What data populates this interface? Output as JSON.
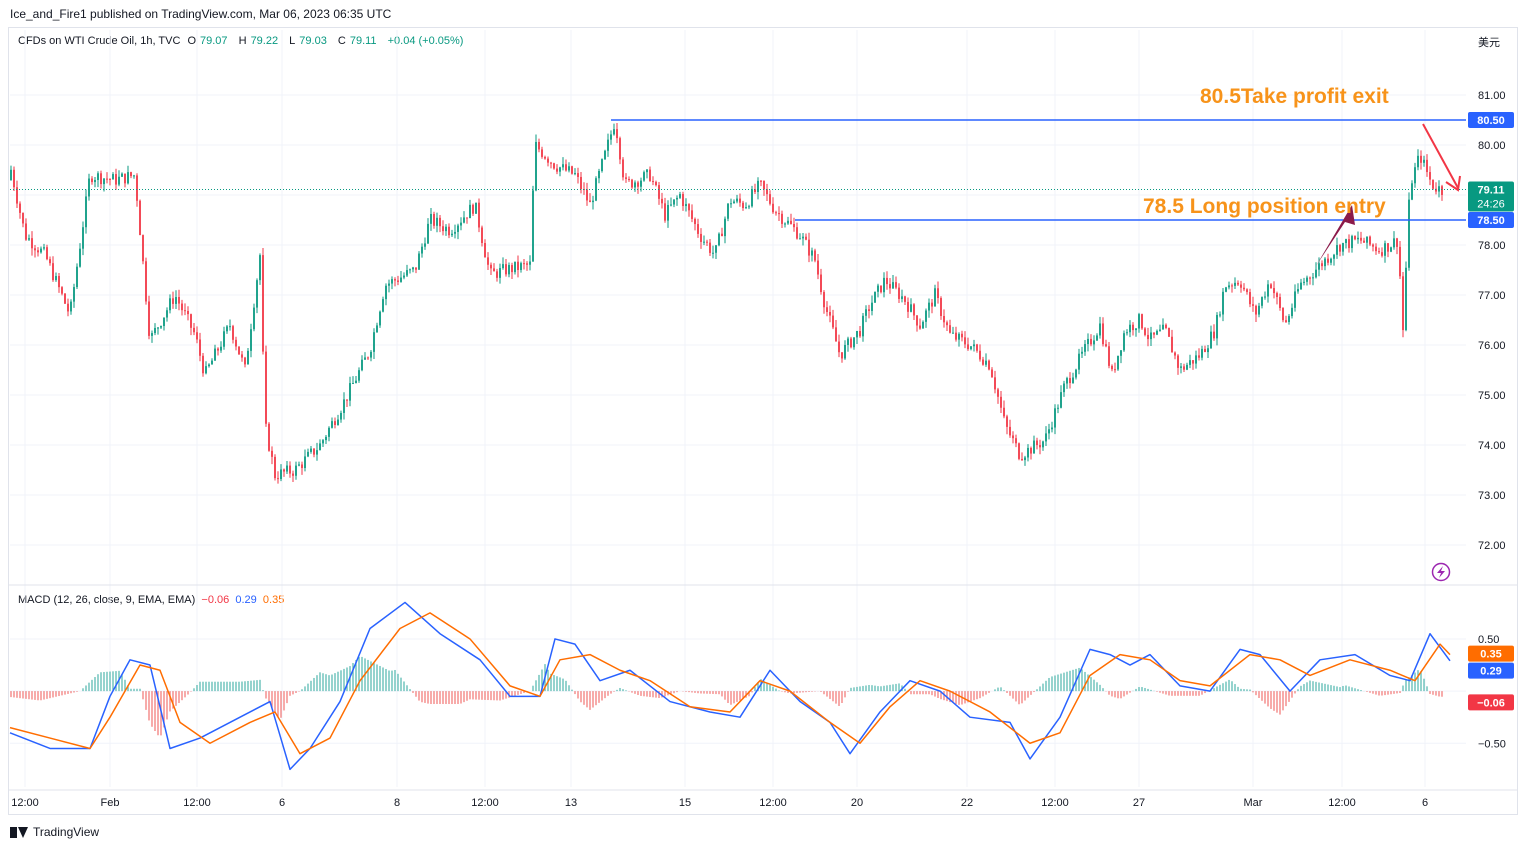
{
  "header": {
    "publisher_line": "Ice_and_Fire1 published on TradingView.com, Mar 06, 2023 06:35 UTC"
  },
  "legend": {
    "symbol": "CFDs on WTI Crude Oil, 1h, TVC",
    "open_label": "O",
    "open": "79.07",
    "high_label": "H",
    "high": "79.22",
    "low_label": "L",
    "low": "79.03",
    "close_label": "C",
    "close": "79.11",
    "change": "+0.04 (+0.05%)"
  },
  "macd_legend": {
    "label": "MACD (12, 26, close, 9, EMA, EMA)",
    "hist": "−0.06",
    "macd": "0.29",
    "signal": "0.35"
  },
  "currency": "美元",
  "footer": {
    "brand": "TradingView"
  },
  "chart_data": [
    {
      "type": "candlestick",
      "title": "CFDs on WTI Crude Oil, 1h, TVC",
      "x_tick_labels": [
        "12:00",
        "Feb",
        "12:00",
        "6",
        "8",
        "12:00",
        "13",
        "15",
        "12:00",
        "20",
        "22",
        "12:00",
        "27",
        "Mar",
        "12:00",
        "6"
      ],
      "y_tick_labels": [
        "81.00",
        "80.00",
        "79.00",
        "78.00",
        "77.00",
        "76.00",
        "75.00",
        "74.00",
        "73.00",
        "72.00"
      ],
      "ylim": [
        71.4,
        81.9
      ],
      "price_path": [
        [
          0,
          79.3
        ],
        [
          10,
          79.6
        ],
        [
          25,
          78.2
        ],
        [
          45,
          77.8
        ],
        [
          70,
          76.6
        ],
        [
          90,
          79.4
        ],
        [
          115,
          79.3
        ],
        [
          135,
          79.4
        ],
        [
          150,
          76.1
        ],
        [
          175,
          77.0
        ],
        [
          195,
          76.2
        ],
        [
          205,
          75.4
        ],
        [
          230,
          76.4
        ],
        [
          245,
          75.5
        ],
        [
          260,
          77.8
        ],
        [
          265,
          74.4
        ],
        [
          275,
          73.4
        ],
        [
          295,
          73.5
        ],
        [
          320,
          74.0
        ],
        [
          345,
          74.9
        ],
        [
          370,
          75.9
        ],
        [
          385,
          77.2
        ],
        [
          415,
          77.5
        ],
        [
          430,
          78.5
        ],
        [
          450,
          78.3
        ],
        [
          475,
          78.8
        ],
        [
          490,
          77.4
        ],
        [
          505,
          77.5
        ],
        [
          530,
          77.6
        ],
        [
          535,
          80.0
        ],
        [
          555,
          79.6
        ],
        [
          575,
          79.4
        ],
        [
          590,
          78.8
        ],
        [
          605,
          79.8
        ],
        [
          615,
          80.5
        ],
        [
          625,
          79.2
        ],
        [
          650,
          79.4
        ],
        [
          665,
          78.6
        ],
        [
          680,
          79.0
        ],
        [
          700,
          78.2
        ],
        [
          715,
          77.8
        ],
        [
          730,
          78.9
        ],
        [
          745,
          78.8
        ],
        [
          760,
          79.2
        ],
        [
          775,
          78.7
        ],
        [
          800,
          78.2
        ],
        [
          815,
          77.7
        ],
        [
          825,
          76.8
        ],
        [
          840,
          75.8
        ],
        [
          860,
          76.3
        ],
        [
          870,
          76.8
        ],
        [
          885,
          77.3
        ],
        [
          905,
          76.9
        ],
        [
          920,
          76.4
        ],
        [
          935,
          77.0
        ],
        [
          950,
          76.2
        ],
        [
          970,
          76.0
        ],
        [
          990,
          75.6
        ],
        [
          1005,
          74.4
        ],
        [
          1020,
          73.8
        ],
        [
          1045,
          74.1
        ],
        [
          1065,
          75.2
        ],
        [
          1085,
          75.9
        ],
        [
          1100,
          76.4
        ],
        [
          1112,
          75.4
        ],
        [
          1125,
          76.3
        ],
        [
          1140,
          76.5
        ],
        [
          1150,
          76.1
        ],
        [
          1165,
          76.3
        ],
        [
          1180,
          75.5
        ],
        [
          1200,
          75.8
        ],
        [
          1215,
          76.3
        ],
        [
          1225,
          77.2
        ],
        [
          1240,
          77.3
        ],
        [
          1255,
          76.6
        ],
        [
          1270,
          77.3
        ],
        [
          1285,
          76.4
        ],
        [
          1300,
          77.2
        ],
        [
          1320,
          77.6
        ],
        [
          1340,
          78.0
        ],
        [
          1360,
          78.1
        ],
        [
          1380,
          77.9
        ],
        [
          1398,
          78.1
        ],
        [
          1403,
          76.3
        ],
        [
          1410,
          79.2
        ],
        [
          1420,
          79.8
        ],
        [
          1432,
          79.2
        ],
        [
          1442,
          79.1
        ]
      ],
      "price_lines": [
        {
          "value": 80.5,
          "label": "80.50",
          "color": "#2962ff"
        },
        {
          "value": 78.5,
          "label": "78.50",
          "color": "#2962ff"
        }
      ],
      "last_price": {
        "value": 79.11,
        "label": "79.11",
        "countdown": "24:26",
        "color": "#089981"
      },
      "annotations": [
        {
          "text": "80.5Take profit exit",
          "color": "#f7931a"
        },
        {
          "text": "78.5 Long position entry",
          "color": "#f7931a"
        }
      ]
    },
    {
      "type": "line",
      "title": "MACD (12, 26, close, 9, EMA, EMA)",
      "y_tick_labels": [
        "0.50",
        "0.00",
        "−0.50"
      ],
      "ylim": [
        -0.9,
        0.95
      ],
      "series": [
        {
          "name": "MACD",
          "color": "#2962ff",
          "points": [
            [
              0,
              -0.4
            ],
            [
              40,
              -0.55
            ],
            [
              80,
              -0.55
            ],
            [
              100,
              -0.05
            ],
            [
              120,
              0.3
            ],
            [
              140,
              0.25
            ],
            [
              160,
              -0.55
            ],
            [
              190,
              -0.45
            ],
            [
              230,
              -0.25
            ],
            [
              260,
              -0.1
            ],
            [
              280,
              -0.75
            ],
            [
              300,
              -0.55
            ],
            [
              330,
              -0.1
            ],
            [
              360,
              0.6
            ],
            [
              395,
              0.85
            ],
            [
              430,
              0.55
            ],
            [
              470,
              0.3
            ],
            [
              500,
              -0.05
            ],
            [
              530,
              -0.05
            ],
            [
              545,
              0.5
            ],
            [
              565,
              0.45
            ],
            [
              590,
              0.1
            ],
            [
              620,
              0.2
            ],
            [
              660,
              -0.1
            ],
            [
              700,
              -0.2
            ],
            [
              730,
              -0.25
            ],
            [
              760,
              0.2
            ],
            [
              790,
              -0.1
            ],
            [
              820,
              -0.3
            ],
            [
              840,
              -0.6
            ],
            [
              870,
              -0.2
            ],
            [
              900,
              0.1
            ],
            [
              930,
              0.0
            ],
            [
              960,
              -0.25
            ],
            [
              1000,
              -0.3
            ],
            [
              1020,
              -0.65
            ],
            [
              1050,
              -0.25
            ],
            [
              1080,
              0.4
            ],
            [
              1100,
              0.35
            ],
            [
              1120,
              0.25
            ],
            [
              1140,
              0.35
            ],
            [
              1170,
              0.05
            ],
            [
              1200,
              0.0
            ],
            [
              1230,
              0.4
            ],
            [
              1250,
              0.35
            ],
            [
              1280,
              0.0
            ],
            [
              1310,
              0.3
            ],
            [
              1345,
              0.35
            ],
            [
              1380,
              0.15
            ],
            [
              1400,
              0.1
            ],
            [
              1420,
              0.55
            ],
            [
              1440,
              0.29
            ]
          ]
        },
        {
          "name": "Signal",
          "color": "#ff6d00",
          "points": [
            [
              0,
              -0.35
            ],
            [
              40,
              -0.45
            ],
            [
              80,
              -0.55
            ],
            [
              100,
              -0.25
            ],
            [
              130,
              0.25
            ],
            [
              150,
              0.2
            ],
            [
              170,
              -0.3
            ],
            [
              200,
              -0.5
            ],
            [
              240,
              -0.3
            ],
            [
              265,
              -0.2
            ],
            [
              290,
              -0.6
            ],
            [
              320,
              -0.45
            ],
            [
              350,
              0.1
            ],
            [
              390,
              0.6
            ],
            [
              420,
              0.75
            ],
            [
              460,
              0.5
            ],
            [
              500,
              0.05
            ],
            [
              530,
              -0.05
            ],
            [
              550,
              0.3
            ],
            [
              580,
              0.35
            ],
            [
              610,
              0.2
            ],
            [
              640,
              0.1
            ],
            [
              680,
              -0.15
            ],
            [
              720,
              -0.2
            ],
            [
              750,
              0.1
            ],
            [
              780,
              0.0
            ],
            [
              820,
              -0.3
            ],
            [
              850,
              -0.5
            ],
            [
              880,
              -0.15
            ],
            [
              910,
              0.1
            ],
            [
              940,
              0.0
            ],
            [
              980,
              -0.2
            ],
            [
              1020,
              -0.5
            ],
            [
              1050,
              -0.4
            ],
            [
              1080,
              0.15
            ],
            [
              1110,
              0.35
            ],
            [
              1140,
              0.3
            ],
            [
              1170,
              0.1
            ],
            [
              1200,
              0.05
            ],
            [
              1240,
              0.35
            ],
            [
              1270,
              0.3
            ],
            [
              1300,
              0.15
            ],
            [
              1340,
              0.3
            ],
            [
              1380,
              0.2
            ],
            [
              1405,
              0.1
            ],
            [
              1430,
              0.45
            ],
            [
              1440,
              0.35
            ]
          ]
        }
      ],
      "histogram_color_pos": "#26a69a",
      "histogram_color_neg": "#ef5350",
      "value_labels": [
        {
          "label": "0.35",
          "color": "#ff6d00"
        },
        {
          "label": "0.29",
          "color": "#2962ff"
        },
        {
          "label": "−0.06",
          "color": "#f23645"
        }
      ]
    }
  ]
}
